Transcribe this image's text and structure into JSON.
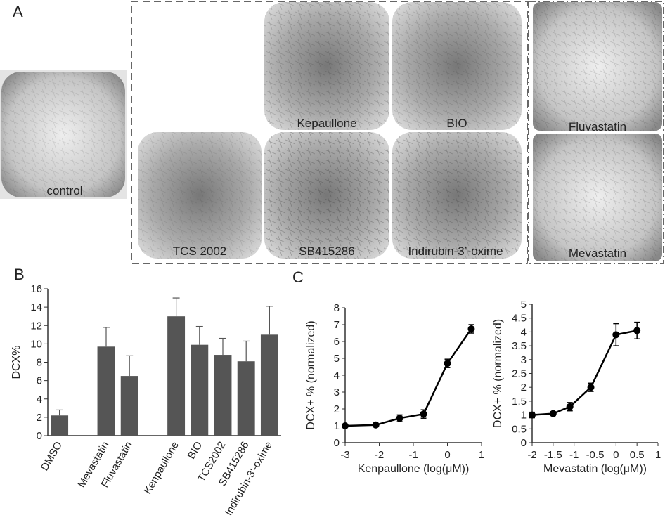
{
  "panels": {
    "a": "A",
    "b": "B",
    "c": "C"
  },
  "images": {
    "control": "control",
    "tcs": "TCS 2002",
    "kep": "Kepaullone",
    "bio": "BIO",
    "sb": "SB415286",
    "indir": "Indirubin-3’-oxime",
    "fluva": "Fluvastatin",
    "meva": "Mevastatin"
  },
  "chart_data": [
    {
      "type": "bar",
      "ylabel": "DCX%",
      "categories": [
        "DMSO",
        null,
        "Mevastatin",
        "Fluvastatin",
        null,
        "Kenpaullone",
        "BIO",
        "TCS2002",
        "SB415286",
        "Indirubin-3'-oxime"
      ],
      "values": [
        2.2,
        null,
        9.7,
        6.5,
        null,
        13.0,
        9.9,
        8.8,
        8.1,
        11.0
      ],
      "errors": [
        0.6,
        null,
        2.1,
        2.2,
        null,
        2.0,
        2.0,
        1.8,
        2.2,
        3.1
      ],
      "color": "#555555",
      "ylim": [
        0,
        16
      ],
      "yticks": [
        0,
        2,
        4,
        6,
        8,
        10,
        12,
        14,
        16
      ]
    },
    {
      "type": "line",
      "xlabel": "Kenpaullone  (log(μM))",
      "ylabel": "DCX+ % (normalized)",
      "x": [
        -3,
        -2.1,
        -1.4,
        -0.7,
        0,
        0.7
      ],
      "values": [
        1.0,
        1.05,
        1.45,
        1.7,
        4.7,
        6.75
      ],
      "errors": [
        0.05,
        0.05,
        0.2,
        0.25,
        0.25,
        0.25
      ],
      "color": "#000000",
      "xlim": [
        -3,
        1
      ],
      "xticks": [
        -3,
        -2,
        -1,
        0,
        1
      ],
      "ylim": [
        0,
        8
      ],
      "yticks": [
        0,
        1,
        2,
        3,
        4,
        5,
        6,
        7,
        8
      ]
    },
    {
      "type": "line",
      "xlabel": "Mevastatin (log(μM))",
      "ylabel": "DCX+ % (normalized)",
      "x": [
        -2,
        -1.5,
        -1.1,
        -0.6,
        0,
        0.5
      ],
      "values": [
        1.0,
        1.05,
        1.3,
        2.0,
        3.9,
        4.05
      ],
      "errors": [
        0.1,
        0.07,
        0.15,
        0.15,
        0.4,
        0.3
      ],
      "color": "#000000",
      "xlim": [
        -2,
        1
      ],
      "xticks": [
        -2,
        -1.5,
        -1,
        -0.5,
        0,
        0.5,
        1
      ],
      "ylim": [
        0,
        5
      ],
      "yticks": [
        0,
        0.5,
        1,
        1.5,
        2,
        2.5,
        3,
        3.5,
        4,
        4.5,
        5
      ]
    }
  ]
}
